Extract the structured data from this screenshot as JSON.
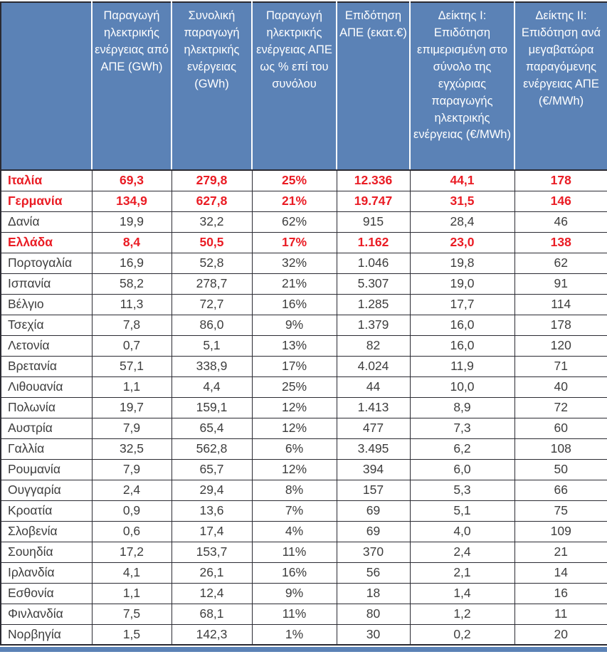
{
  "chart_data": {
    "type": "table",
    "columns": [
      "",
      "Παραγωγή ηλεκτρικής ενέργειας από ΑΠΕ (GWh)",
      "Συνολική παραγωγή ηλεκτρικής ενέργειας (GWh)",
      "Παραγωγή ηλεκτρικής ενέργειας ΑΠΕ ως % επί του συνόλου",
      "Επιδότηση ΑΠΕ (εκατ.€)",
      "Δείκτης Ι: Επιδότηση επιμερισμένη στο σύνολο της εγχώριας παραγωγής ηλεκτρικής ενέργειας (€/MWh)",
      "Δείκτης ΙΙ: Επιδότηση ανά μεγαβατώρα παραγόμενης ενέργειας ΑΠΕ (€/MWh)"
    ],
    "rows": [
      {
        "country": "Ιταλία",
        "highlighted": true,
        "values": [
          "69,3",
          "279,8",
          "25%",
          "12.336",
          "44,1",
          "178"
        ]
      },
      {
        "country": "Γερμανία",
        "highlighted": true,
        "values": [
          "134,9",
          "627,8",
          "21%",
          "19.747",
          "31,5",
          "146"
        ]
      },
      {
        "country": "Δανία",
        "highlighted": false,
        "values": [
          "19,9",
          "32,2",
          "62%",
          "915",
          "28,4",
          "46"
        ]
      },
      {
        "country": "Ελλάδα",
        "highlighted": true,
        "values": [
          "8,4",
          "50,5",
          "17%",
          "1.162",
          "23,0",
          "138"
        ]
      },
      {
        "country": "Πορτογαλία",
        "highlighted": false,
        "values": [
          "16,9",
          "52,8",
          "32%",
          "1.046",
          "19,8",
          "62"
        ]
      },
      {
        "country": "Ισπανία",
        "highlighted": false,
        "values": [
          "58,2",
          "278,7",
          "21%",
          "5.307",
          "19,0",
          "91"
        ]
      },
      {
        "country": "Βέλγιο",
        "highlighted": false,
        "values": [
          "11,3",
          "72,7",
          "16%",
          "1.285",
          "17,7",
          "114"
        ]
      },
      {
        "country": "Τσεχία",
        "highlighted": false,
        "values": [
          "7,8",
          "86,0",
          "9%",
          "1.379",
          "16,0",
          "178"
        ]
      },
      {
        "country": "Λετονία",
        "highlighted": false,
        "values": [
          "0,7",
          "5,1",
          "13%",
          "82",
          "16,0",
          "120"
        ]
      },
      {
        "country": "Βρετανία",
        "highlighted": false,
        "values": [
          "57,1",
          "338,9",
          "17%",
          "4.024",
          "11,9",
          "71"
        ]
      },
      {
        "country": "Λιθουανία",
        "highlighted": false,
        "values": [
          "1,1",
          "4,4",
          "25%",
          "44",
          "10,0",
          "40"
        ]
      },
      {
        "country": "Πολωνία",
        "highlighted": false,
        "values": [
          "19,7",
          "159,1",
          "12%",
          "1.413",
          "8,9",
          "72"
        ]
      },
      {
        "country": "Αυστρία",
        "highlighted": false,
        "values": [
          "7,9",
          "65,4",
          "12%",
          "477",
          "7,3",
          "60"
        ]
      },
      {
        "country": "Γαλλία",
        "highlighted": false,
        "values": [
          "32,5",
          "562,8",
          "6%",
          "3.495",
          "6,2",
          "108"
        ]
      },
      {
        "country": "Ρουμανία",
        "highlighted": false,
        "values": [
          "7,9",
          "65,7",
          "12%",
          "394",
          "6,0",
          "50"
        ]
      },
      {
        "country": "Ουγγαρία",
        "highlighted": false,
        "values": [
          "2,4",
          "29,4",
          "8%",
          "157",
          "5,3",
          "66"
        ]
      },
      {
        "country": "Κροατία",
        "highlighted": false,
        "values": [
          "0,9",
          "13,6",
          "7%",
          "69",
          "5,1",
          "75"
        ]
      },
      {
        "country": "Σλοβενία",
        "highlighted": false,
        "values": [
          "0,6",
          "17,4",
          "4%",
          "69",
          "4,0",
          "109"
        ]
      },
      {
        "country": "Σουηδία",
        "highlighted": false,
        "values": [
          "17,2",
          "153,7",
          "11%",
          "370",
          "2,4",
          "21"
        ]
      },
      {
        "country": "Ιρλανδία",
        "highlighted": false,
        "values": [
          "4,1",
          "26,1",
          "16%",
          "56",
          "2,1",
          "14"
        ]
      },
      {
        "country": "Εσθονία",
        "highlighted": false,
        "values": [
          "1,1",
          "12,4",
          "9%",
          "18",
          "1,4",
          "16"
        ]
      },
      {
        "country": "Φινλανδία",
        "highlighted": false,
        "values": [
          "7,5",
          "68,1",
          "11%",
          "80",
          "1,2",
          "11"
        ]
      },
      {
        "country": "Νορβηγία",
        "highlighted": false,
        "values": [
          "1,5",
          "142,3",
          "1%",
          "30",
          "0,2",
          "20"
        ]
      }
    ],
    "highlighted_countries": [
      "Ιταλία",
      "Γερμανία",
      "Ελλάδα"
    ]
  },
  "colors": {
    "header_bg": "#5b82b6",
    "header_text": "#ffffff",
    "grid": "#2a2a32",
    "body_text": "#3d3d3d",
    "highlight_text": "#ea1c24",
    "row_bg": "#ffffff"
  }
}
